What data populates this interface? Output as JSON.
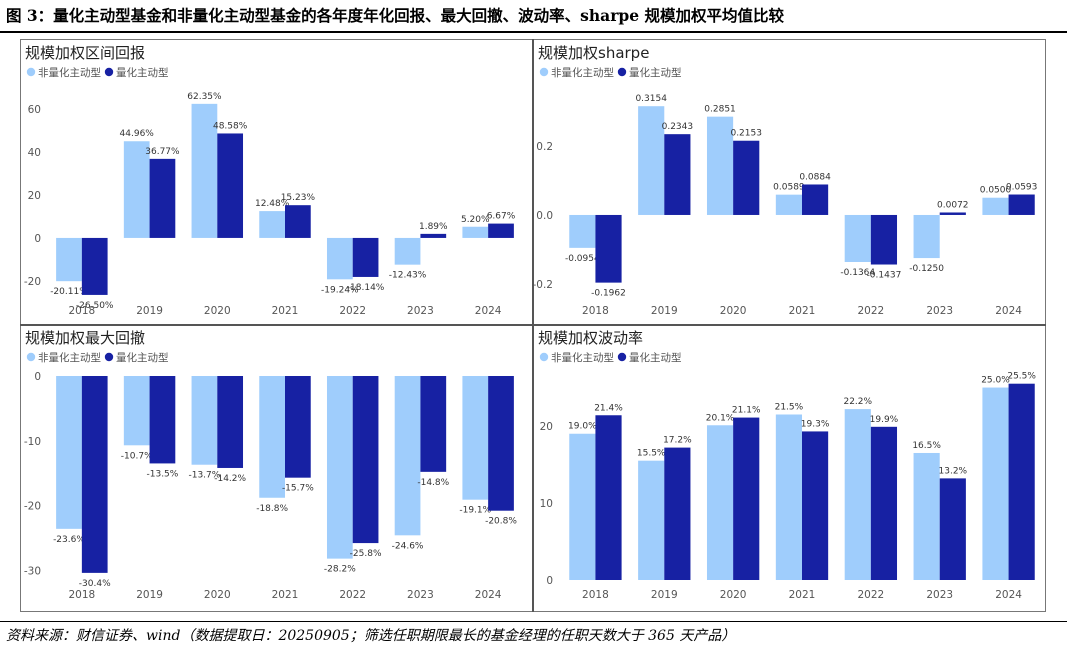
{
  "figure": {
    "title": "图 3：量化主动型基金和非量化主动型基金的各年度年化回报、最大回撤、波动率、sharpe 规模加权平均值比较",
    "source": "资料来源：财信证券、wind（数据提取日：20250905；筛选任职期限最长的基金经理的任职天数大于 365 天产品）"
  },
  "colors": {
    "non_quant": "#9fcdfc",
    "quant": "#1721a3",
    "axis_text": "#555555",
    "label_text": "#333333"
  },
  "chart_data": [
    {
      "type": "bar",
      "title": "规模加权区间回报",
      "categories": [
        "2018",
        "2019",
        "2020",
        "2021",
        "2022",
        "2023",
        "2024"
      ],
      "series": [
        {
          "name": "非量化主动型",
          "values": [
            -20.11,
            44.96,
            62.35,
            12.48,
            -19.24,
            -12.43,
            5.2
          ],
          "labels": [
            "-20.11%",
            "44.96%",
            "62.35%",
            "12.48%",
            "-19.24%",
            "-12.43%",
            "5.20%"
          ]
        },
        {
          "name": "量化主动型",
          "values": [
            -26.5,
            36.77,
            48.58,
            15.23,
            -18.14,
            1.89,
            6.67
          ],
          "labels": [
            "-26.50%",
            "36.77%",
            "48.58%",
            "15.23%",
            "-18.14%",
            "1.89%",
            "6.67%"
          ]
        }
      ],
      "yticks": [
        -20,
        0,
        20,
        40,
        60
      ],
      "ylim": [
        -27,
        66
      ],
      "legend": "top-left"
    },
    {
      "type": "bar",
      "title": "规模加权sharpe",
      "categories": [
        "2018",
        "2019",
        "2020",
        "2021",
        "2022",
        "2023",
        "2024"
      ],
      "series": [
        {
          "name": "非量化主动型",
          "values": [
            -0.0954,
            0.3154,
            0.2851,
            0.0589,
            -0.1364,
            -0.125,
            0.05
          ],
          "labels": [
            "-0.0954",
            "0.3154",
            "0.2851",
            "0.0589",
            "-0.1364",
            "-0.1250",
            "0.0500"
          ]
        },
        {
          "name": "量化主动型",
          "values": [
            -0.1962,
            0.2343,
            0.2153,
            0.0884,
            -0.1437,
            0.0072,
            0.0593
          ],
          "labels": [
            "-0.1962",
            "0.2343",
            "0.2153",
            "0.0884",
            "-0.1437",
            "0.0072",
            "0.0593"
          ]
        }
      ],
      "yticks": [
        -0.2,
        0.0,
        0.2
      ],
      "ytick_labels": [
        "-0.2",
        "0.0",
        "0.2"
      ],
      "ylim": [
        -0.235,
        0.345
      ],
      "legend": "top-left"
    },
    {
      "type": "bar",
      "title": "规模加权最大回撤",
      "categories": [
        "2018",
        "2019",
        "2020",
        "2021",
        "2022",
        "2023",
        "2024"
      ],
      "series": [
        {
          "name": "非量化主动型",
          "values": [
            -23.6,
            -10.7,
            -13.7,
            -18.8,
            -28.2,
            -24.6,
            -19.1
          ],
          "labels": [
            "-23.6%",
            "-10.7%",
            "-13.7%",
            "-18.8%",
            "-28.2%",
            "-24.6%",
            "-19.1%"
          ]
        },
        {
          "name": "量化主动型",
          "values": [
            -30.4,
            -13.5,
            -14.2,
            -15.7,
            -25.8,
            -14.8,
            -20.8
          ],
          "labels": [
            "-30.4%",
            "-13.5%",
            "-14.2%",
            "-15.7%",
            "-25.8%",
            "-14.8%",
            "-20.8%"
          ]
        }
      ],
      "yticks": [
        -30,
        -20,
        -10,
        0
      ],
      "ylim": [
        -31.5,
        0
      ],
      "legend": "top-left"
    },
    {
      "type": "bar",
      "title": "规模加权波动率",
      "categories": [
        "2018",
        "2019",
        "2020",
        "2021",
        "2022",
        "2023",
        "2024"
      ],
      "series": [
        {
          "name": "非量化主动型",
          "values": [
            19.0,
            15.5,
            20.1,
            21.5,
            22.2,
            16.5,
            25.0
          ],
          "labels": [
            "19.0%",
            "15.5%",
            "20.1%",
            "21.5%",
            "22.2%",
            "16.5%",
            "25.0%"
          ]
        },
        {
          "name": "量化主动型",
          "values": [
            21.4,
            17.2,
            21.1,
            19.3,
            19.9,
            13.2,
            25.5
          ],
          "labels": [
            "21.4%",
            "17.2%",
            "21.1%",
            "19.3%",
            "19.9%",
            "13.2%",
            "25.5%"
          ]
        }
      ],
      "yticks": [
        0,
        10,
        20
      ],
      "ylim": [
        0,
        26.5
      ],
      "legend": "top-left"
    }
  ]
}
